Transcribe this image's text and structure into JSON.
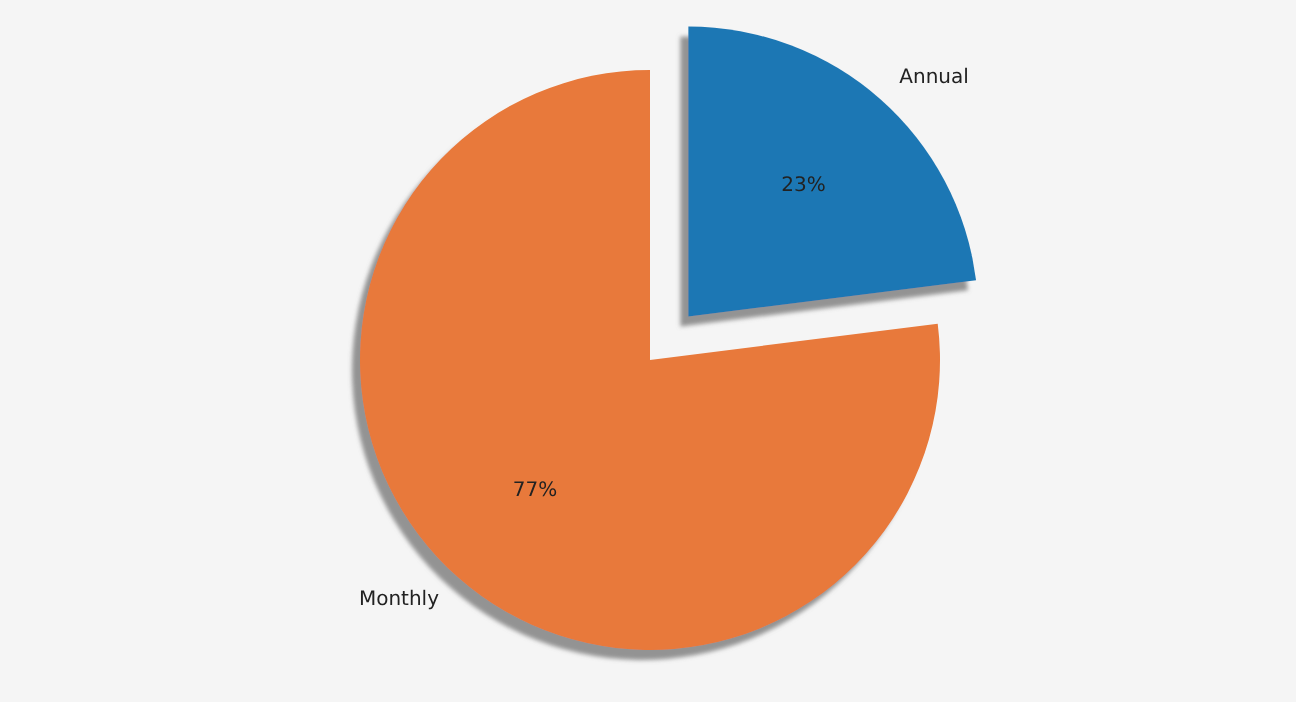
{
  "chart_data": {
    "type": "pie",
    "categories": [
      "Annual",
      "Monthly"
    ],
    "values": [
      23,
      77
    ],
    "colors": [
      "#1f77b4",
      "#e8793a"
    ],
    "value_labels": [
      "23%",
      "77%"
    ]
  }
}
